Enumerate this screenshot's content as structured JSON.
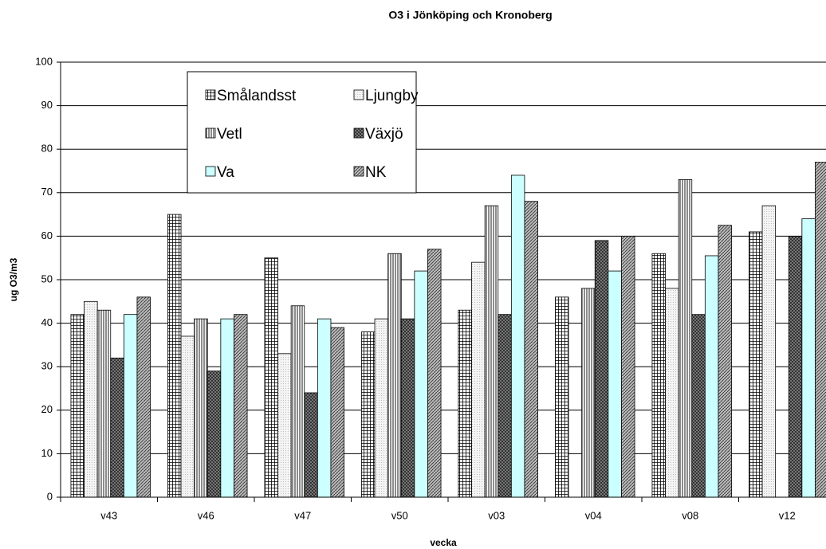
{
  "chart_data": {
    "type": "bar",
    "title": "O3 i Jönköping och Kronoberg",
    "x_label": "vecka",
    "y_label": "ug O3/m3",
    "categories": [
      "v43",
      "v46",
      "v47",
      "v50",
      "v03",
      "v04",
      "v08",
      "v12"
    ],
    "series": [
      {
        "name": "Smålandsst",
        "color": "#ffffff",
        "values": [
          42,
          65,
          55,
          38,
          43,
          46,
          56,
          61
        ]
      },
      {
        "name": "Ljungby",
        "color": "#f4f4f4",
        "values": [
          45,
          37,
          33,
          41,
          54,
          null,
          48,
          67
        ]
      },
      {
        "name": "Vetl",
        "color": "#ffffff",
        "values": [
          43,
          41,
          44,
          56,
          67,
          48,
          73,
          null
        ]
      },
      {
        "name": "Växjö",
        "color": "#808080",
        "values": [
          32,
          29,
          24,
          41,
          42,
          59,
          42,
          60
        ]
      },
      {
        "name": "Va",
        "color": "#ccffff",
        "values": [
          42,
          41,
          41,
          52,
          74,
          52,
          55.5,
          64
        ]
      },
      {
        "name": "NK",
        "color": "#b0b0b0",
        "values": [
          46,
          42,
          39,
          57,
          68,
          60,
          62.5,
          77
        ]
      }
    ],
    "ylim": [
      0,
      100
    ],
    "yticks": [
      0,
      10,
      20,
      30,
      40,
      50,
      60,
      70,
      80,
      90,
      100
    ],
    "grid": true
  }
}
